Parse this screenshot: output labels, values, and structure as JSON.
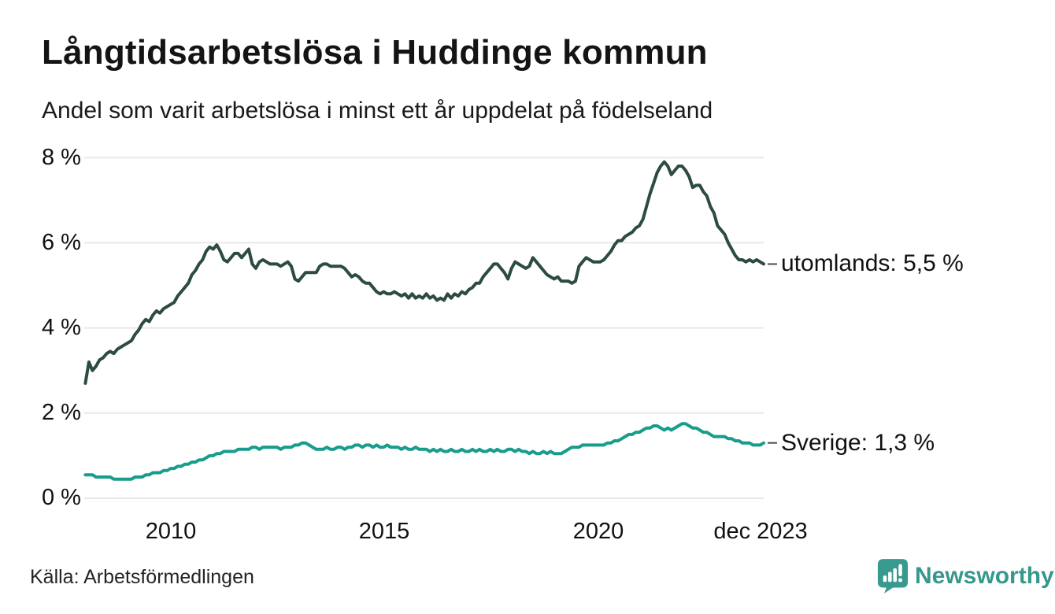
{
  "page": {
    "title": "Långtidsarbetslösa i Huddinge kommun",
    "subtitle": "Andel som varit arbetslösa i minst ett år uppdelat på födelseland"
  },
  "footer": {
    "source": "Källa: Arbetsförmedlingen",
    "brand": "Newsworthy"
  },
  "colors": {
    "utomlands_line": "#2c4b43",
    "sverige_line": "#189c8c",
    "grid": "#e8e8ec",
    "connector": "#4a4a4a",
    "brand_teal": "#38998e"
  },
  "chart_data": {
    "type": "line",
    "title": "Långtidsarbetslösa i Huddinge kommun",
    "subtitle": "Andel som varit arbetslösa i minst ett år uppdelat på födelseland",
    "source": "Källa: Arbetsförmedlingen",
    "unit": "%",
    "grid": "horizontal",
    "legend_position": "end-of-line",
    "ylim": [
      0,
      8
    ],
    "x_range": {
      "start": "2008-01",
      "end": "2023-12",
      "interval": "monthly"
    },
    "y_ticks": [
      {
        "value": 8,
        "label": "8 %"
      },
      {
        "value": 6,
        "label": "6 %"
      },
      {
        "value": 4,
        "label": "4 %"
      },
      {
        "value": 2,
        "label": "2 %"
      },
      {
        "value": 0,
        "label": "0 %"
      }
    ],
    "x_ticks": [
      {
        "position": 2010.0,
        "label": "2010"
      },
      {
        "position": 2015.0,
        "label": "2015"
      },
      {
        "position": 2020.0,
        "label": "2020"
      },
      {
        "position": 2023.9,
        "label": "dec 2023"
      }
    ],
    "series": [
      {
        "name": "utomlands",
        "end_label": "utomlands: 5,5 %",
        "last_value_display": "5,5 %",
        "color": "#2c4b43",
        "values": [
          2.7,
          3.2,
          3.0,
          3.1,
          3.25,
          3.3,
          3.4,
          3.45,
          3.4,
          3.5,
          3.55,
          3.6,
          3.65,
          3.7,
          3.85,
          3.95,
          4.1,
          4.2,
          4.15,
          4.3,
          4.4,
          4.35,
          4.45,
          4.5,
          4.55,
          4.6,
          4.75,
          4.85,
          4.95,
          5.05,
          5.25,
          5.35,
          5.5,
          5.6,
          5.8,
          5.9,
          5.85,
          5.95,
          5.8,
          5.6,
          5.55,
          5.65,
          5.75,
          5.75,
          5.65,
          5.75,
          5.85,
          5.5,
          5.4,
          5.55,
          5.6,
          5.55,
          5.5,
          5.5,
          5.5,
          5.45,
          5.5,
          5.55,
          5.45,
          5.15,
          5.1,
          5.2,
          5.3,
          5.3,
          5.3,
          5.3,
          5.45,
          5.5,
          5.5,
          5.45,
          5.45,
          5.45,
          5.45,
          5.4,
          5.3,
          5.2,
          5.25,
          5.2,
          5.1,
          5.05,
          5.05,
          4.95,
          4.85,
          4.8,
          4.85,
          4.8,
          4.8,
          4.85,
          4.8,
          4.75,
          4.8,
          4.7,
          4.8,
          4.7,
          4.75,
          4.7,
          4.8,
          4.7,
          4.75,
          4.65,
          4.7,
          4.65,
          4.8,
          4.7,
          4.8,
          4.75,
          4.85,
          4.8,
          4.9,
          4.95,
          5.05,
          5.05,
          5.2,
          5.3,
          5.4,
          5.5,
          5.5,
          5.4,
          5.3,
          5.15,
          5.4,
          5.55,
          5.5,
          5.45,
          5.4,
          5.45,
          5.65,
          5.55,
          5.45,
          5.35,
          5.25,
          5.2,
          5.15,
          5.2,
          5.1,
          5.1,
          5.1,
          5.05,
          5.1,
          5.45,
          5.55,
          5.65,
          5.6,
          5.55,
          5.55,
          5.55,
          5.6,
          5.7,
          5.8,
          5.95,
          6.05,
          6.05,
          6.15,
          6.2,
          6.25,
          6.35,
          6.4,
          6.55,
          6.85,
          7.15,
          7.4,
          7.65,
          7.8,
          7.9,
          7.8,
          7.6,
          7.7,
          7.8,
          7.8,
          7.7,
          7.55,
          7.3,
          7.35,
          7.35,
          7.2,
          7.1,
          6.85,
          6.7,
          6.4,
          6.3,
          6.2,
          6.0,
          5.85,
          5.7,
          5.6,
          5.6,
          5.55,
          5.6,
          5.55,
          5.6,
          5.55,
          5.5
        ]
      },
      {
        "name": "Sverige",
        "end_label": "Sverige: 1,3 %",
        "last_value_display": "1,3 %",
        "color": "#189c8c",
        "values": [
          0.55,
          0.55,
          0.55,
          0.5,
          0.5,
          0.5,
          0.5,
          0.5,
          0.45,
          0.45,
          0.45,
          0.45,
          0.45,
          0.45,
          0.5,
          0.5,
          0.5,
          0.55,
          0.55,
          0.6,
          0.6,
          0.6,
          0.65,
          0.65,
          0.7,
          0.7,
          0.75,
          0.75,
          0.8,
          0.8,
          0.85,
          0.85,
          0.9,
          0.9,
          0.95,
          1.0,
          1.0,
          1.05,
          1.05,
          1.1,
          1.1,
          1.1,
          1.1,
          1.15,
          1.15,
          1.15,
          1.15,
          1.2,
          1.2,
          1.15,
          1.2,
          1.2,
          1.2,
          1.2,
          1.2,
          1.15,
          1.2,
          1.2,
          1.2,
          1.25,
          1.25,
          1.3,
          1.3,
          1.25,
          1.2,
          1.15,
          1.15,
          1.15,
          1.2,
          1.15,
          1.15,
          1.2,
          1.2,
          1.15,
          1.2,
          1.2,
          1.25,
          1.25,
          1.2,
          1.25,
          1.25,
          1.2,
          1.25,
          1.2,
          1.2,
          1.25,
          1.2,
          1.2,
          1.2,
          1.15,
          1.2,
          1.15,
          1.15,
          1.2,
          1.15,
          1.15,
          1.15,
          1.1,
          1.15,
          1.1,
          1.15,
          1.1,
          1.1,
          1.15,
          1.1,
          1.1,
          1.15,
          1.1,
          1.1,
          1.15,
          1.1,
          1.15,
          1.1,
          1.1,
          1.15,
          1.1,
          1.15,
          1.1,
          1.1,
          1.15,
          1.15,
          1.1,
          1.15,
          1.1,
          1.1,
          1.05,
          1.1,
          1.05,
          1.05,
          1.1,
          1.05,
          1.1,
          1.05,
          1.05,
          1.05,
          1.1,
          1.15,
          1.2,
          1.2,
          1.2,
          1.25,
          1.25,
          1.25,
          1.25,
          1.25,
          1.25,
          1.25,
          1.3,
          1.3,
          1.35,
          1.35,
          1.4,
          1.45,
          1.5,
          1.5,
          1.55,
          1.55,
          1.6,
          1.65,
          1.65,
          1.7,
          1.7,
          1.65,
          1.6,
          1.65,
          1.6,
          1.65,
          1.7,
          1.75,
          1.75,
          1.7,
          1.65,
          1.65,
          1.6,
          1.55,
          1.55,
          1.5,
          1.45,
          1.45,
          1.45,
          1.45,
          1.4,
          1.4,
          1.35,
          1.35,
          1.3,
          1.3,
          1.3,
          1.25,
          1.25,
          1.25,
          1.3
        ]
      }
    ]
  }
}
